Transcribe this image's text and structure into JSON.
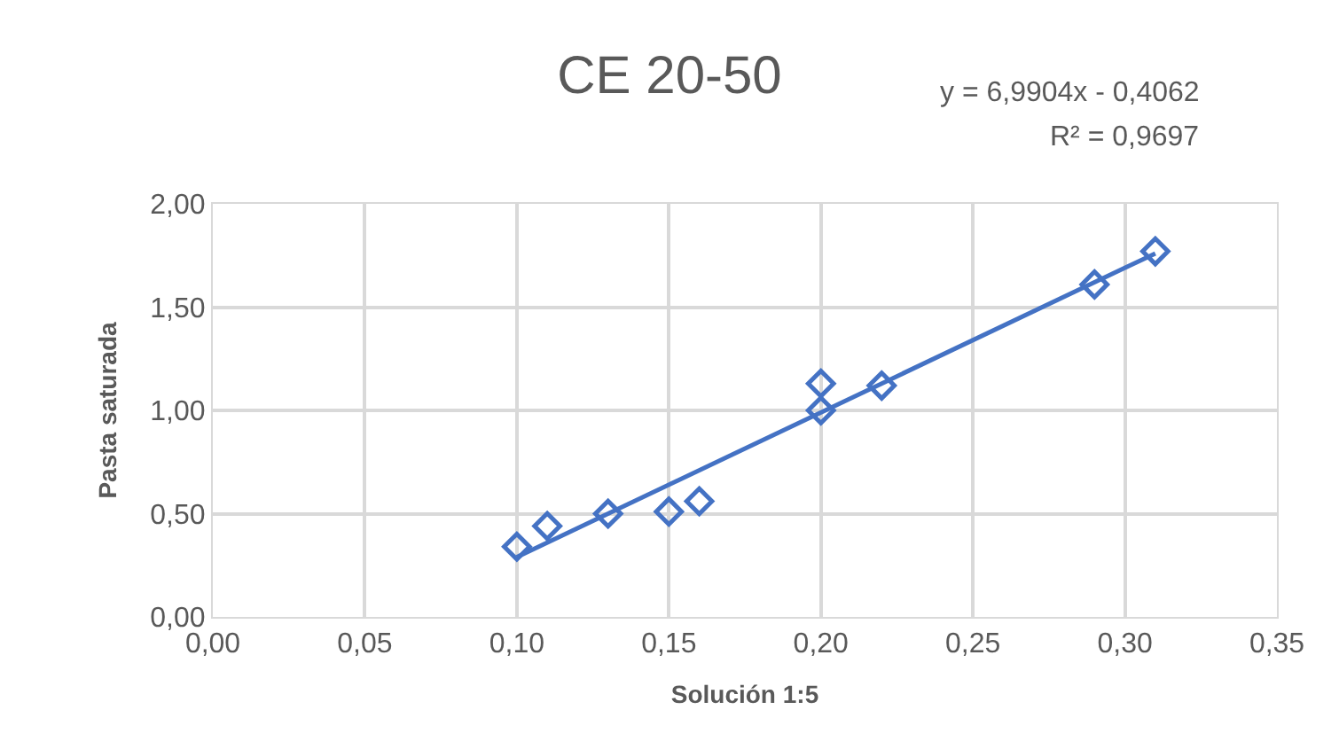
{
  "chart_data": {
    "type": "scatter",
    "title": "CE 20-50",
    "xlabel": "Solución 1:5",
    "ylabel": "Pasta saturada",
    "xlim": [
      0,
      0.35
    ],
    "xticks": [
      {
        "value": 0,
        "label": "0,00"
      },
      {
        "value": 0.05,
        "label": "0,05"
      },
      {
        "value": 0.1,
        "label": "0,10"
      },
      {
        "value": 0.15,
        "label": "0,15"
      },
      {
        "value": 0.2,
        "label": "0,20"
      },
      {
        "value": 0.25,
        "label": "0,25"
      },
      {
        "value": 0.3,
        "label": "0,30"
      },
      {
        "value": 0.35,
        "label": "0,35"
      }
    ],
    "ylim": [
      0,
      2
    ],
    "yticks": [
      {
        "value": 0,
        "label": "0,00"
      },
      {
        "value": 0.5,
        "label": "0,50"
      },
      {
        "value": 1,
        "label": "1,00"
      },
      {
        "value": 1.5,
        "label": "1,50"
      },
      {
        "value": 2,
        "label": "2,00"
      }
    ],
    "grid": true,
    "series": [
      {
        "marker": "diamond",
        "color": "#4472c4",
        "x": [
          0.1,
          0.11,
          0.13,
          0.15,
          0.16,
          0.2,
          0.2,
          0.22,
          0.29,
          0.31
        ],
        "values": [
          0.34,
          0.44,
          0.5,
          0.51,
          0.56,
          1.0,
          1.13,
          1.12,
          1.61,
          1.77
        ]
      },
      {
        "type": "line",
        "marker": "none",
        "color": "#4472c4",
        "x": [
          0.1,
          0.31
        ],
        "values": [
          0.29,
          1.76
        ]
      }
    ],
    "annotations": [
      "y = 6,9904x - 0,4062",
      "R² = 0,9697"
    ]
  }
}
